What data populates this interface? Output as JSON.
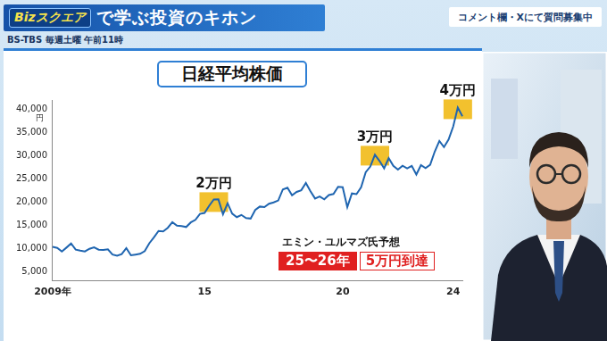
{
  "header": {
    "logo": "Bizスクエア",
    "title": "で学ぶ投資のキホン",
    "schedule": "BS-TBS 毎週土曜 午前11時",
    "notice": "コメント欄・Xにて質問募集中"
  },
  "chart_data": {
    "type": "line",
    "title": "日経平均株価",
    "y_label": "円",
    "color": "#1f65b0",
    "grid": false,
    "categories": [
      "2009年",
      null,
      null,
      null,
      null,
      null,
      null,
      null,
      null,
      null,
      null,
      null,
      null,
      null,
      null,
      null,
      null,
      null,
      null,
      null,
      null,
      null,
      null,
      null,
      null,
      null,
      null,
      null,
      null,
      null,
      null,
      null,
      null,
      "15",
      null,
      null,
      null,
      null,
      null,
      null,
      null,
      null,
      null,
      null,
      null,
      null,
      null,
      null,
      null,
      null,
      null,
      null,
      null,
      null,
      null,
      null,
      null,
      null,
      null,
      null,
      null,
      null,
      null,
      "20",
      null,
      null,
      null,
      null,
      null,
      null,
      null,
      null,
      null,
      null,
      null,
      null,
      null,
      null,
      null,
      null,
      null,
      null,
      null,
      null,
      null,
      null,
      null,
      "24",
      null,
      null
    ],
    "values": [
      10356,
      10133,
      9345,
      10198,
      11089,
      9768,
      9537,
      9369,
      9937,
      10237,
      9755,
      9693,
      9833,
      8700,
      8434,
      8802,
      10083,
      8542,
      8695,
      8870,
      9446,
      11138,
      12397,
      13774,
      13668,
      14455,
      15661,
      14914,
      14827,
      14632,
      15620,
      16173,
      17459,
      17674,
      19206,
      20563,
      20585,
      17388,
      19747,
      17518,
      16758,
      17234,
      16569,
      16449,
      18308,
      19041,
      18909,
      19650,
      19925,
      20356,
      22724,
      23098,
      21454,
      22201,
      22553,
      24120,
      22351,
      20773,
      21205,
      20601,
      21521,
      21756,
      23293,
      23205,
      18917,
      21877,
      21710,
      23185,
      26433,
      27663,
      30200,
      28860,
      27283,
      29452,
      27821,
      27001,
      27821,
      27279,
      27801,
      25937,
      27968,
      27327,
      28041,
      30887,
      33172,
      31857,
      33486,
      36286,
      40369,
      38487
    ],
    "ylim": [
      3000,
      42000
    ],
    "yticks": [
      {
        "value": 5000,
        "label": "5,000"
      },
      {
        "value": 10000,
        "label": "10,000"
      },
      {
        "value": 15000,
        "label": "15,000"
      },
      {
        "value": 20000,
        "label": "20,000"
      },
      {
        "value": 25000,
        "label": "25,000"
      },
      {
        "value": 30000,
        "label": "30,000"
      },
      {
        "value": 35000,
        "label": "35,000"
      },
      {
        "value": 40000,
        "label": "40,000"
      }
    ],
    "annotations": [
      {
        "text": "2万円",
        "value": 20000
      },
      {
        "text": "3万円",
        "value": 30000
      },
      {
        "text": "4万円",
        "value": 40000
      }
    ],
    "forecast": {
      "label": "エミン・ユルマズ氏予想",
      "period": "25〜26年",
      "target": "5万円到達"
    }
  }
}
